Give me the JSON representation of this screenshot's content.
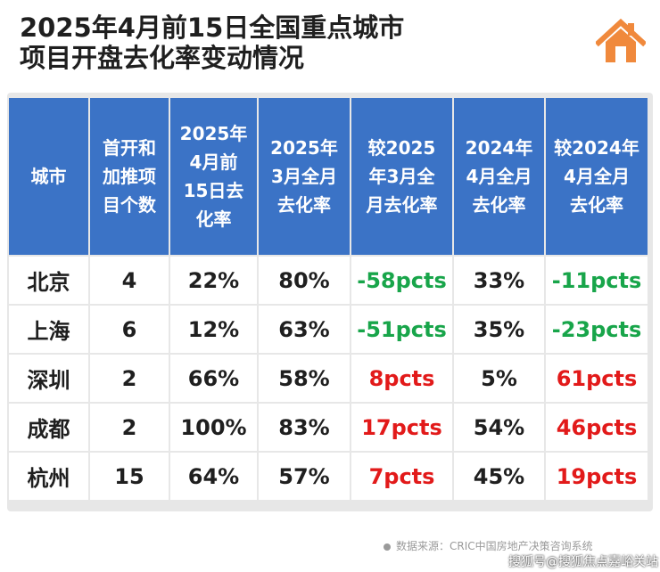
{
  "title": {
    "line1": "2025年4月前15日全国重点城市",
    "line2": "项目开盘去化率变动情况"
  },
  "icons": {
    "logo": "house-icon",
    "logo_color": "#f0893c"
  },
  "colors": {
    "header_bg": "#3b73c6",
    "negative": "#18a54a",
    "positive": "#e21a1a"
  },
  "table": {
    "headers": [
      [
        "城市"
      ],
      [
        "首开和",
        "加推项",
        "目个数"
      ],
      [
        "2025年",
        "4月前",
        "15日去",
        "化率"
      ],
      [
        "2025年",
        "3月全月",
        "去化率"
      ],
      [
        "较2025",
        "年3月全",
        "月去化率"
      ],
      [
        "2024年",
        "4月全月",
        "去化率"
      ],
      [
        "较2024年",
        "4月全月",
        "去化率"
      ]
    ],
    "rows": [
      {
        "city": "北京",
        "count": "4",
        "apr2025": "22%",
        "mar2025": "80%",
        "vs_mar2025": "-58pcts",
        "apr2024": "33%",
        "vs_apr2024": "-11pcts"
      },
      {
        "city": "上海",
        "count": "6",
        "apr2025": "12%",
        "mar2025": "63%",
        "vs_mar2025": "-51pcts",
        "apr2024": "35%",
        "vs_apr2024": "-23pcts"
      },
      {
        "city": "深圳",
        "count": "2",
        "apr2025": "66%",
        "mar2025": "58%",
        "vs_mar2025": "8pcts",
        "apr2024": "5%",
        "vs_apr2024": "61pcts"
      },
      {
        "city": "成都",
        "count": "2",
        "apr2025": "100%",
        "mar2025": "83%",
        "vs_mar2025": "17pcts",
        "apr2024": "54%",
        "vs_apr2024": "46pcts"
      },
      {
        "city": "杭州",
        "count": "15",
        "apr2025": "64%",
        "mar2025": "57%",
        "vs_mar2025": "7pcts",
        "apr2024": "45%",
        "vs_apr2024": "19pcts"
      }
    ]
  },
  "source": "数据来源：CRIC中国房地产决策咨询系统",
  "watermark": "搜狐号@搜狐焦点嘉峪关站"
}
